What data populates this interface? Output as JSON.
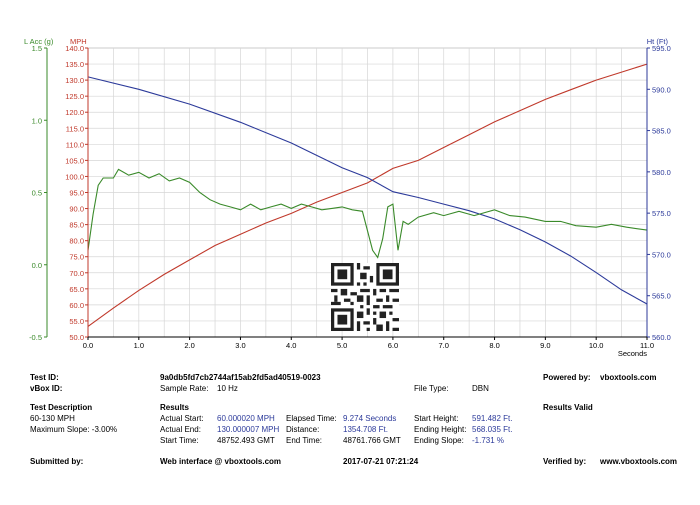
{
  "colors": {
    "acc": "#3a8a2a",
    "mph": "#c0392b",
    "ht": "#2c3a9a",
    "grid": "#d6d6d6",
    "axis": "#000000"
  },
  "chart_data": {
    "type": "line",
    "x_unit": "Seconds",
    "xlim": [
      0,
      11
    ],
    "x_ticks": [
      "0.0",
      "1.0",
      "2.0",
      "3.0",
      "4.0",
      "5.0",
      "6.0",
      "7.0",
      "8.0",
      "9.0",
      "10.0",
      "11.0"
    ],
    "left_axis_acc": {
      "label": "L Acc (g)",
      "ylim": [
        -0.5,
        1.5
      ],
      "ticks": [
        "1.5",
        "1.0",
        "0.5",
        "0.0",
        "-0.5"
      ]
    },
    "left_axis_mph": {
      "label": "MPH",
      "ylim": [
        50,
        140
      ],
      "ticks": [
        "140.0",
        "135.0",
        "130.0",
        "125.0",
        "120.0",
        "115.0",
        "110.0",
        "105.0",
        "100.0",
        "95.0",
        "90.0",
        "85.0",
        "80.0",
        "75.0",
        "70.0",
        "65.0",
        "60.0",
        "55.0",
        "50.0"
      ]
    },
    "right_axis_ht": {
      "label": "Ht (Ft)",
      "ylim": [
        560,
        595
      ],
      "ticks": [
        "595.0",
        "590.0",
        "585.0",
        "580.0",
        "575.0",
        "570.0",
        "565.0",
        "560.0"
      ]
    },
    "series": [
      {
        "name": "MPH",
        "axis": "mph",
        "x": [
          0,
          0.5,
          1,
          1.5,
          2,
          2.5,
          3,
          3.5,
          4,
          4.5,
          5,
          5.5,
          6,
          6.5,
          7,
          7.5,
          8,
          8.5,
          9,
          9.5,
          10,
          10.5,
          11
        ],
        "y": [
          53.3,
          59,
          64.5,
          69.5,
          74,
          78.5,
          82,
          85.5,
          88.5,
          92,
          95,
          98,
          102.5,
          105,
          109,
          113,
          117,
          120.5,
          124,
          127,
          130,
          132.5,
          135
        ]
      },
      {
        "name": "Ht",
        "axis": "ht",
        "x": [
          0,
          1,
          2,
          3,
          4,
          5,
          5.5,
          6,
          6.5,
          7,
          7.5,
          8,
          8.5,
          9,
          9.5,
          10,
          10.5,
          11
        ],
        "y": [
          591.5,
          590,
          588.2,
          586,
          583.5,
          580.5,
          579.3,
          577.6,
          576.9,
          576.1,
          575.3,
          574.3,
          573,
          571.5,
          569.8,
          567.8,
          565.7,
          564
        ]
      },
      {
        "name": "L Acc",
        "axis": "acc",
        "x": [
          0,
          0.1,
          0.2,
          0.3,
          0.5,
          0.6,
          0.8,
          1.0,
          1.2,
          1.4,
          1.6,
          1.8,
          2.0,
          2.2,
          2.4,
          2.6,
          2.8,
          3.0,
          3.2,
          3.4,
          3.6,
          3.8,
          4.0,
          4.2,
          4.4,
          4.6,
          4.8,
          5.0,
          5.2,
          5.4,
          5.6,
          5.7,
          5.8,
          5.9,
          6.0,
          6.1,
          6.2,
          6.3,
          6.5,
          6.8,
          7.0,
          7.3,
          7.6,
          8.0,
          8.3,
          8.6,
          9.0,
          9.3,
          9.6,
          10.0,
          10.3,
          10.6,
          11.0
        ],
        "y": [
          0.1,
          0.35,
          0.55,
          0.6,
          0.6,
          0.66,
          0.62,
          0.64,
          0.6,
          0.63,
          0.58,
          0.6,
          0.57,
          0.5,
          0.45,
          0.42,
          0.4,
          0.38,
          0.42,
          0.38,
          0.4,
          0.42,
          0.39,
          0.42,
          0.4,
          0.38,
          0.39,
          0.4,
          0.38,
          0.37,
          0.1,
          0.05,
          0.18,
          0.4,
          0.42,
          0.1,
          0.3,
          0.28,
          0.33,
          0.36,
          0.34,
          0.37,
          0.34,
          0.38,
          0.34,
          0.33,
          0.3,
          0.3,
          0.27,
          0.26,
          0.28,
          0.26,
          0.24
        ]
      }
    ]
  },
  "report": {
    "test_id_label": "Test ID:",
    "test_id": "9a0db5fd7cb2744af15ab2fd5ad40519-0023",
    "powered_by_label": "Powered by:",
    "powered_by": "vboxtools.com",
    "vbox_id_label": "vBox ID:",
    "sample_rate_label": "Sample Rate:",
    "sample_rate": "10 Hz",
    "file_type_label": "File Type:",
    "file_type": "DBN",
    "test_desc_label": "Test Description",
    "results_label": "Results",
    "results_valid": "Results Valid",
    "test_desc": "60-130 MPH",
    "max_slope": "Maximum Slope: -3.00%",
    "actual_start_label": "Actual Start:",
    "actual_start": "60.000020 MPH",
    "actual_end_label": "Actual End:",
    "actual_end": "130.000007 MPH",
    "start_time_label": "Start Time:",
    "start_time": "48752.493 GMT",
    "elapsed_label": "Elapsed Time:",
    "elapsed": "9.274 Seconds",
    "distance_label": "Distance:",
    "distance": "1354.708 Ft.",
    "end_time_label": "End Time:",
    "end_time": "48761.766 GMT",
    "start_height_label": "Start Height:",
    "start_height": "591.482 Ft.",
    "ending_height_label": "Ending Height:",
    "ending_height": "568.035 Ft.",
    "ending_slope_label": "Ending Slope:",
    "ending_slope": "-1.731 %",
    "submitted_label": "Submitted by:",
    "web_interface": "Web interface @ vboxtools.com",
    "datetime": "2017-07-21 07:21:24",
    "verified_label": "Verified by:",
    "verified_by": "www.vboxtools.com"
  }
}
